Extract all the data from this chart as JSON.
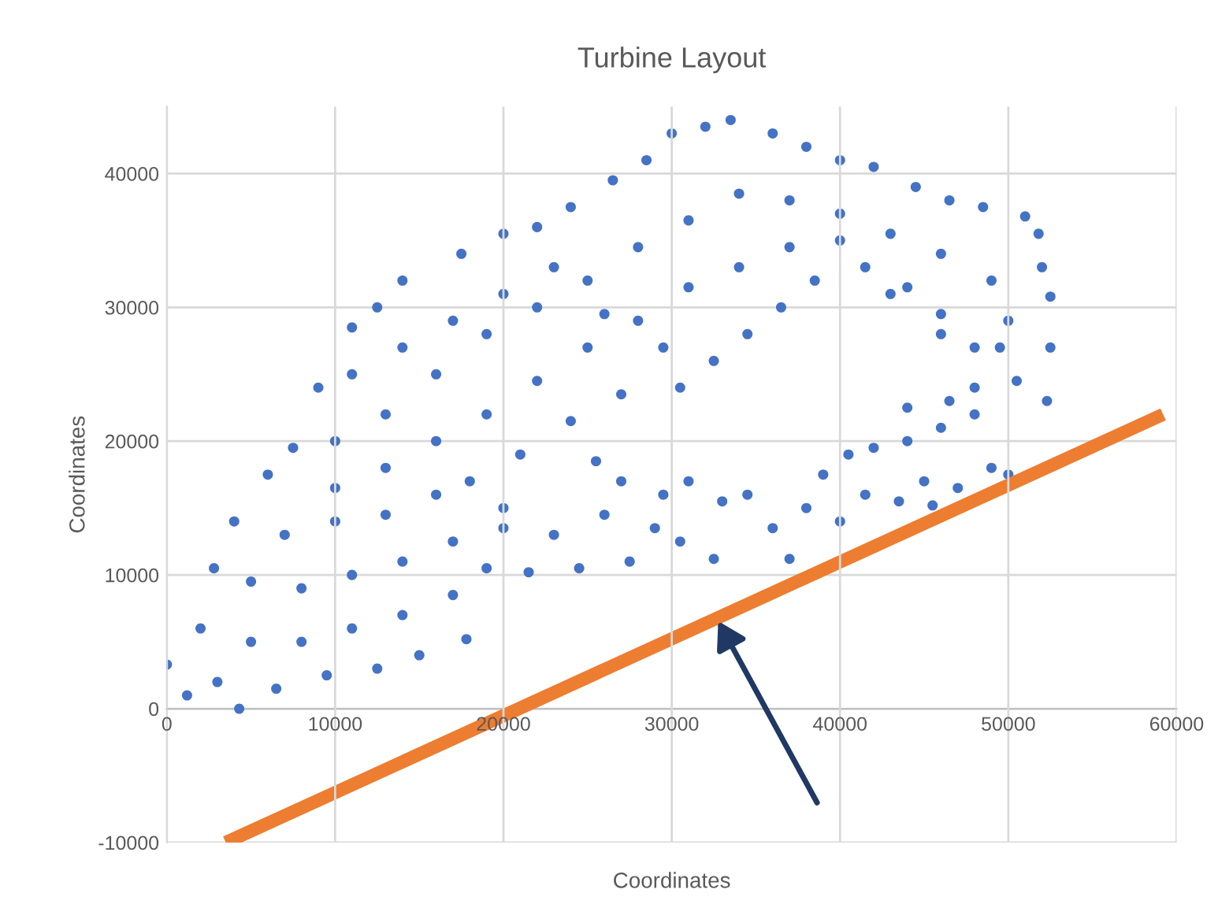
{
  "chart_data": {
    "type": "scatter",
    "title": "Turbine Layout",
    "xlabel": "Coordinates",
    "ylabel": "Coordinates",
    "xlim": [
      0,
      60000
    ],
    "xticks": [
      0,
      10000,
      20000,
      30000,
      40000,
      50000,
      60000
    ],
    "ylim": [
      -10000,
      45000
    ],
    "yticks": [
      -10000,
      0,
      10000,
      20000,
      30000,
      40000
    ],
    "grid": true,
    "series": [
      {
        "marker": "circle",
        "color": "#4472c4",
        "x": [
          0,
          1200,
          4300,
          3000,
          6500,
          9500,
          12500,
          15000,
          17800,
          2000,
          5000,
          8000,
          11000,
          14000,
          17000,
          19000,
          2800,
          5000,
          8000,
          11000,
          14000,
          17000,
          20000,
          4000,
          7000,
          10000,
          13000,
          16000,
          6000,
          7500,
          9000,
          11000,
          12500,
          14000,
          17500,
          20000,
          22000,
          24000,
          26500,
          28500,
          30000,
          32000,
          33500,
          36000,
          38000,
          40000,
          42000,
          44500,
          46500,
          48500,
          51000,
          51800,
          52000,
          52500,
          52500,
          52300,
          50500,
          48000,
          46000,
          44000,
          41500,
          38500,
          36500,
          34500,
          32500,
          30500,
          10000,
          13000,
          16000,
          19000,
          22000,
          25000,
          28000,
          31000,
          34000,
          37000,
          40000,
          43000,
          46000,
          49000,
          50000,
          49500,
          13000,
          16000,
          19000,
          22000,
          25000,
          28000,
          31000,
          34000,
          37000,
          40000,
          43000,
          46000,
          48000,
          10000,
          18000,
          21000,
          24000,
          27000,
          29500,
          26000,
          23000,
          20000,
          17000,
          14000,
          11000,
          20000,
          21500,
          23000,
          24500,
          26000,
          27500,
          29000,
          30500,
          31000,
          32500,
          33000,
          34500,
          27000,
          29500,
          25500,
          36000,
          37000,
          38000,
          39000,
          40000,
          41500,
          42000,
          43500,
          44000,
          45000,
          46000,
          47000,
          48000,
          49000,
          50000,
          40500,
          45500,
          44000,
          46500
        ],
        "values": [
          3300,
          1000,
          0,
          2000,
          1500,
          2500,
          3000,
          4000,
          5200,
          6000,
          5000,
          5000,
          6000,
          7000,
          8500,
          10500,
          10500,
          9500,
          9000,
          10000,
          11000,
          12500,
          13500,
          14000,
          13000,
          14000,
          14500,
          16000,
          17500,
          19500,
          24000,
          28500,
          30000,
          32000,
          34000,
          35500,
          36000,
          37500,
          39500,
          41000,
          43000,
          43500,
          44000,
          43000,
          42000,
          41000,
          40500,
          39000,
          38000,
          37500,
          36800,
          35500,
          33000,
          30800,
          27000,
          23000,
          24500,
          27000,
          29500,
          31500,
          33000,
          32000,
          30000,
          28000,
          26000,
          24000,
          20000,
          22000,
          25000,
          28000,
          30000,
          32000,
          34500,
          36500,
          38500,
          38000,
          37000,
          35500,
          34000,
          32000,
          29000,
          27000,
          18000,
          20000,
          22000,
          24500,
          27000,
          29000,
          31500,
          33000,
          34500,
          35000,
          31000,
          28000,
          24000,
          16500,
          17000,
          19000,
          21500,
          23500,
          27000,
          29500,
          33000,
          31000,
          29000,
          27000,
          25000,
          15000,
          10200,
          13000,
          10500,
          14500,
          11000,
          13500,
          12500,
          17000,
          11200,
          15500,
          16000,
          17000,
          16000,
          18500,
          13500,
          11200,
          15000,
          17500,
          14000,
          16000,
          19500,
          15500,
          20000,
          17000,
          21000,
          16500,
          22000,
          18000,
          17500,
          19000,
          15200,
          22500,
          23000
        ]
      },
      {
        "type": "line",
        "color": "#ed7d31",
        "x": [
          3500,
          59200
        ],
        "values": [
          -10000,
          22000
        ]
      }
    ]
  }
}
